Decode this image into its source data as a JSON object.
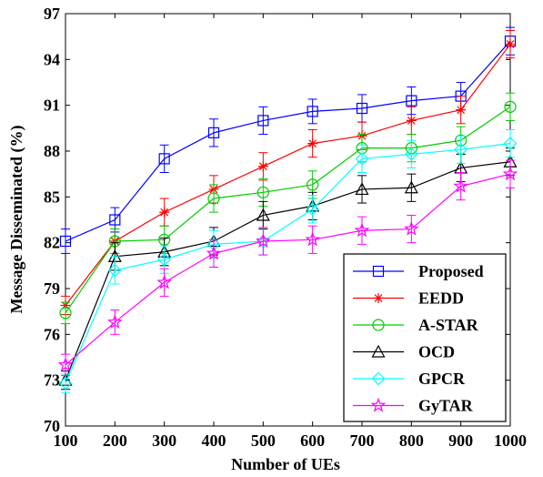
{
  "chart_data": {
    "type": "line",
    "title": "",
    "xlabel": "Number of UEs",
    "ylabel": "Message Disseminated (%)",
    "x": [
      100,
      200,
      300,
      400,
      500,
      600,
      700,
      800,
      900,
      1000
    ],
    "xlim": [
      100,
      1000
    ],
    "ylim": [
      70,
      97
    ],
    "xticks": [
      100,
      200,
      300,
      400,
      500,
      600,
      700,
      800,
      900,
      1000
    ],
    "yticks": [
      70,
      73,
      76,
      79,
      82,
      85,
      88,
      91,
      94,
      97
    ],
    "xtick_labels": [
      "100",
      "200",
      "300",
      "400",
      "500",
      "600",
      "700",
      "800",
      "900",
      "1000"
    ],
    "ytick_labels": [
      "70",
      "73",
      "76",
      "79",
      "82",
      "85",
      "88",
      "91",
      "94",
      "97"
    ],
    "grid": false,
    "legend_position": "bottom-right",
    "series": [
      {
        "name": "Proposed",
        "color": "#0000ff",
        "marker": "square",
        "values": [
          82.1,
          83.5,
          87.5,
          89.2,
          90.0,
          90.6,
          90.8,
          91.3,
          91.6,
          95.2
        ],
        "errors": [
          0.8,
          0.8,
          0.9,
          0.9,
          0.9,
          0.8,
          0.9,
          0.9,
          0.9,
          0.9
        ]
      },
      {
        "name": "EEDD",
        "color": "#ff0000",
        "marker": "asterisk",
        "values": [
          77.9,
          82.1,
          84.0,
          85.5,
          87.0,
          88.5,
          89.0,
          90.0,
          90.7,
          95.0
        ],
        "errors": [
          0.6,
          0.8,
          0.9,
          0.9,
          0.9,
          0.9,
          0.9,
          0.9,
          0.9,
          0.9
        ]
      },
      {
        "name": "A-STAR",
        "color": "#00cc00",
        "marker": "circle",
        "values": [
          77.4,
          82.1,
          82.2,
          84.9,
          85.3,
          85.8,
          88.2,
          88.2,
          88.7,
          90.9
        ],
        "errors": [
          0.7,
          0.8,
          0.9,
          0.9,
          0.9,
          0.9,
          0.9,
          0.9,
          0.9,
          0.9
        ]
      },
      {
        "name": "OCD",
        "color": "#000000",
        "marker": "triangle",
        "values": [
          73.0,
          81.1,
          81.4,
          82.1,
          83.8,
          84.4,
          85.5,
          85.6,
          86.9,
          87.3
        ],
        "errors": [
          0.6,
          0.9,
          0.9,
          0.9,
          0.9,
          0.9,
          0.9,
          0.9,
          0.9,
          0.9
        ]
      },
      {
        "name": "GPCR",
        "color": "#00ffff",
        "marker": "diamond",
        "values": [
          72.8,
          80.2,
          80.9,
          81.9,
          82.1,
          84.2,
          87.5,
          87.8,
          88.1,
          88.5
        ],
        "errors": [
          0.6,
          0.9,
          0.9,
          0.9,
          0.9,
          0.9,
          0.9,
          0.9,
          0.9,
          0.9
        ]
      },
      {
        "name": "GyTAR",
        "color": "#ff00ff",
        "marker": "star",
        "values": [
          74.0,
          76.8,
          79.4,
          81.3,
          82.1,
          82.2,
          82.8,
          82.9,
          85.7,
          86.5
        ],
        "errors": [
          0.7,
          0.8,
          0.9,
          0.9,
          0.9,
          0.9,
          0.9,
          0.9,
          0.9,
          0.9
        ]
      }
    ]
  }
}
